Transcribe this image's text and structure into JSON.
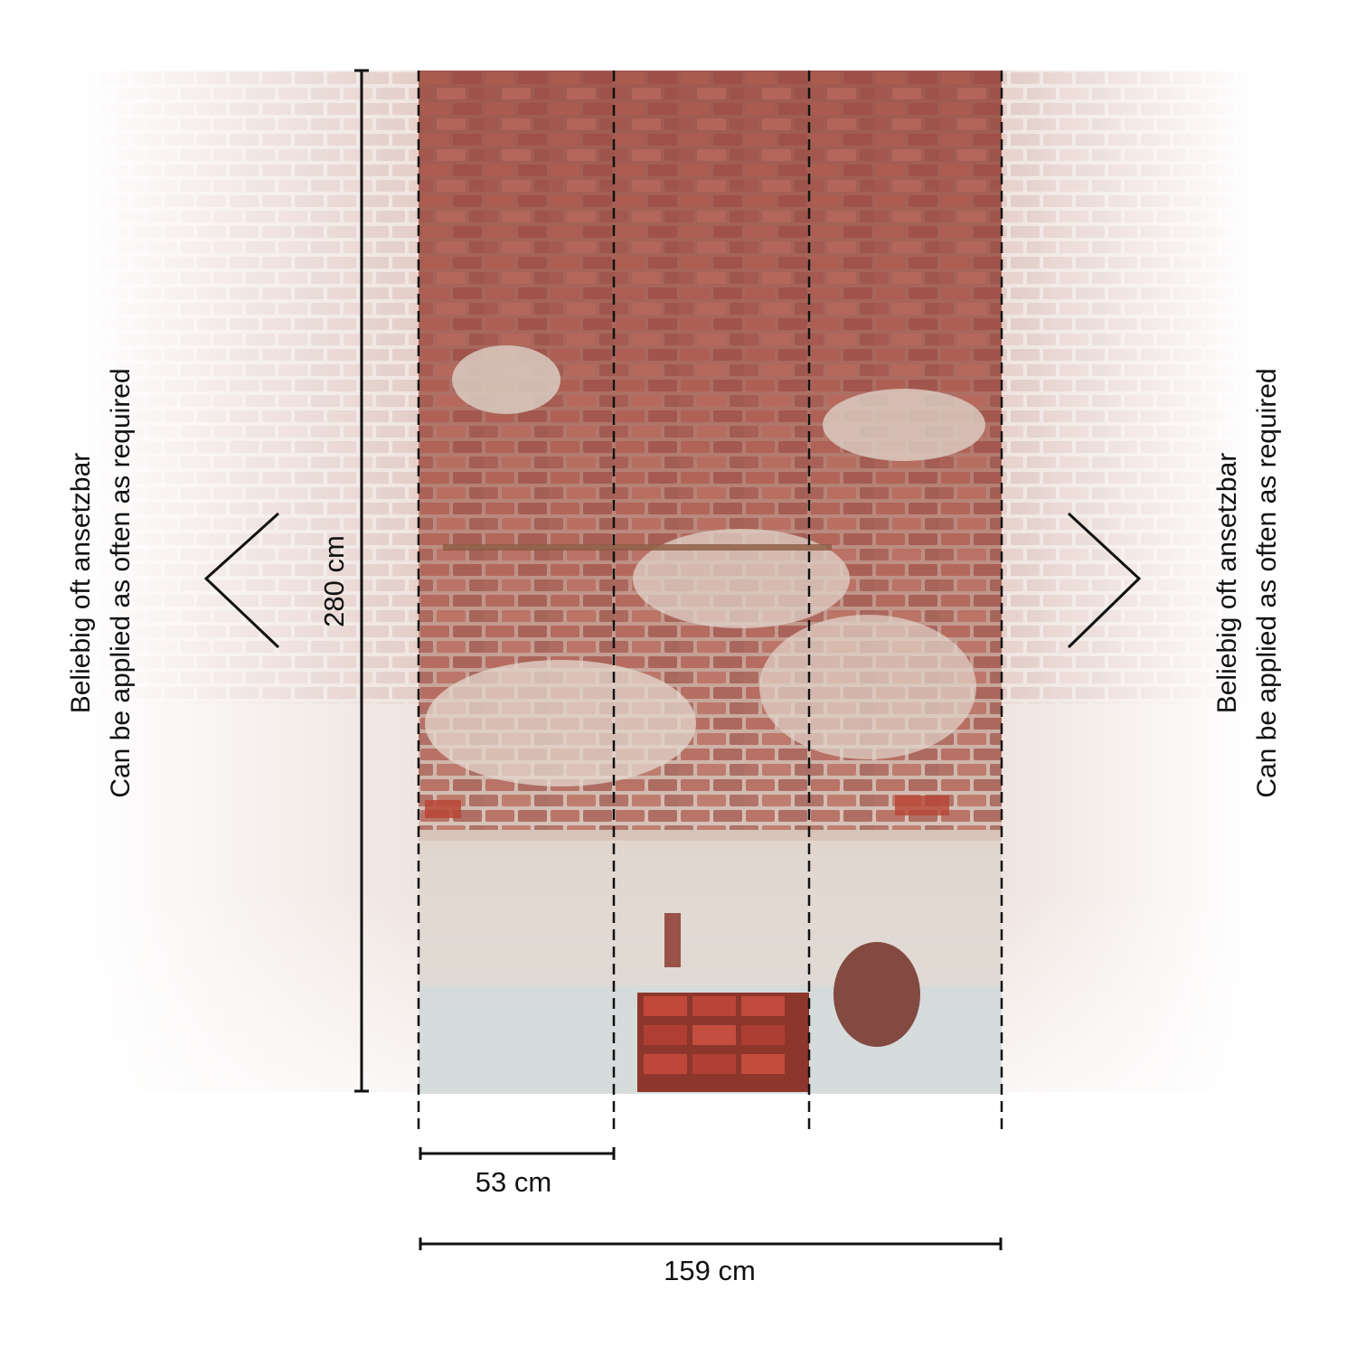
{
  "product_panel": {
    "height_label": "280 cm",
    "strip_width_label": "53 cm",
    "total_width_label": "159 cm",
    "strip_count": 3
  },
  "repeat_notes": {
    "left": {
      "line1": "Beliebig oft ansetzbar",
      "line2": "Can be applied as often as required"
    },
    "right": {
      "line1": "Beliebig oft ansetzbar",
      "line2": "Can be applied as often as required"
    }
  },
  "colors": {
    "brick_red": "#a8574c",
    "brick_dark": "#7c3b33",
    "plaster": "#e3d8cf",
    "mortar": "#c9b8aa",
    "concrete_blue": "#c9d6da",
    "line": "#111111"
  }
}
